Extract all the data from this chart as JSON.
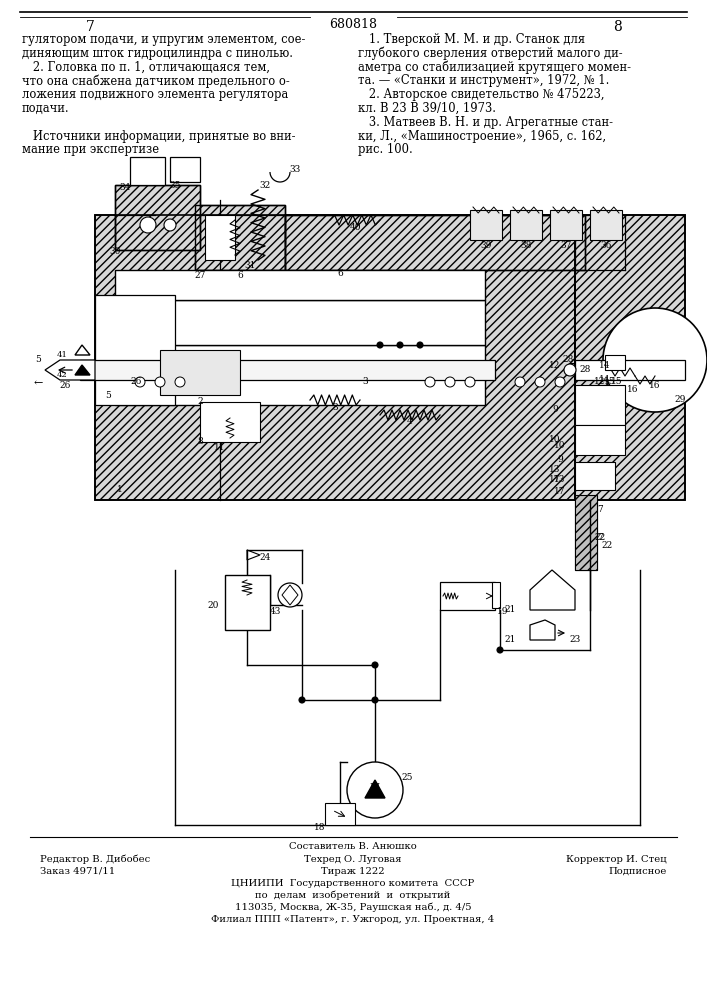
{
  "page_number_left": "7",
  "page_number_right": "8",
  "patent_number": "680818",
  "background_color": "#ffffff",
  "text_color": "#000000",
  "left_column_text": [
    "гулятором подачи, и упругим элементом, сое-",
    "диняющим шток гидроцилиндра с пинолью.",
    "   2. Головка по п. 1, отличающаяся тем,",
    "что она снабжена датчиком предельного о-",
    "ложения подвижного элемента регулятора",
    "подачи.",
    "",
    "   Источники информации, принятые во вни-",
    "мание при экспертизе"
  ],
  "right_column_text": [
    "   1. Тверской М. М. и др. Станок для",
    "глубокого сверления отверстий малого ди-",
    "аметра со стабилизацией крутящего момен-",
    "та. — «Станки и инструмент», 1972, № 1.",
    "   2. Авторское свидетельство № 475223,",
    "кл. В 23 В 39/10, 1973.",
    "   3. Матвеев В. Н. и др. Агрегатные стан-",
    "ки, Л., «Машиностроение», 1965, с. 162,",
    "рис. 100."
  ],
  "footer_line1_left": "Редактор В. Дибобес",
  "footer_line1_center": "Составитель В. Анюшко",
  "footer_line1_right": "Корректор И. Стец",
  "footer_line2_left": "Заказ 4971/11",
  "footer_line2_center": "Техред О. Луговая",
  "footer_line2_right": "Подписное",
  "footer_line3_center": "Тираж 1222",
  "footer_institution": "ЦНИИПИ  Государственного комитета  СССР",
  "footer_institution2": "по  делам  изобретений  и  открытий",
  "footer_address": "113035, Москва, Ж-35, Раушская наб., д. 4/5",
  "footer_branch": "Филиал ППП «Патент», г. Ужгород, ул. Проектная, 4"
}
